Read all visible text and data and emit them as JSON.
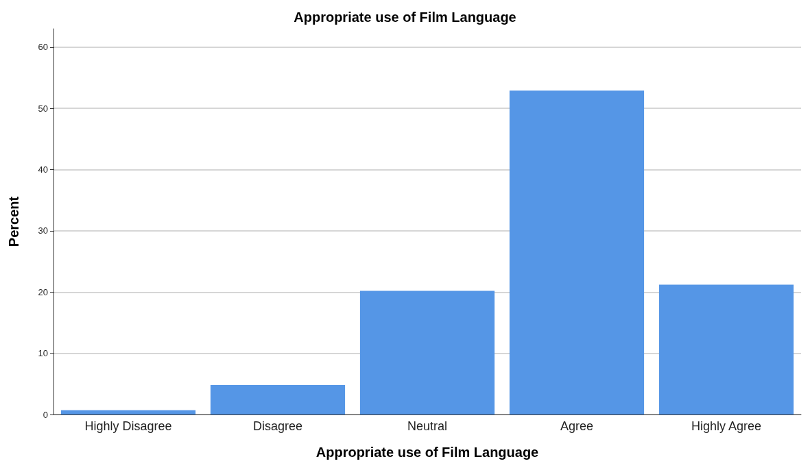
{
  "chart_data": {
    "type": "bar",
    "title": "Appropriate use of Film Language",
    "xlabel": "Appropriate use of Film Language",
    "ylabel": "Percent",
    "categories": [
      "Highly Disagree",
      "Disagree",
      "Neutral",
      "Agree",
      "Highly Agree"
    ],
    "values": [
      0.7,
      4.8,
      20.2,
      52.9,
      21.2
    ],
    "color": "#5596e6",
    "ylim": [
      0,
      63
    ],
    "yticks": [
      0,
      10,
      20,
      30,
      40,
      50,
      60
    ],
    "grid": "y"
  }
}
